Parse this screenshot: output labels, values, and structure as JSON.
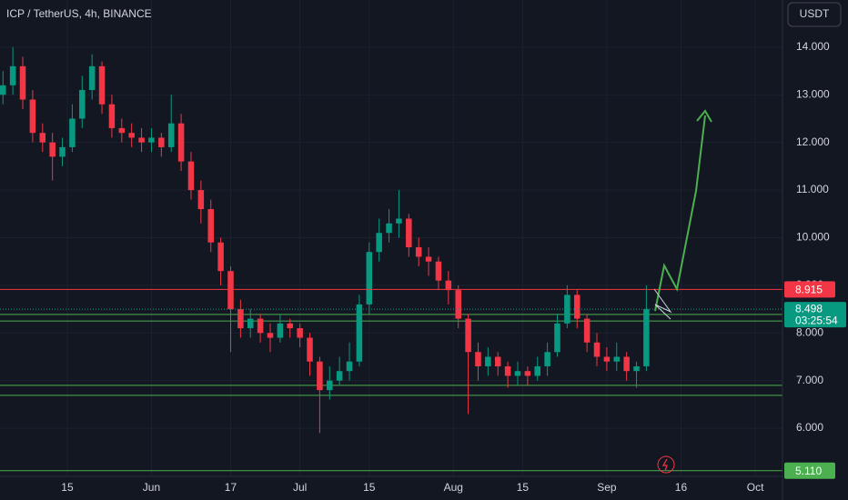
{
  "chart_data": {
    "type": "candlestick",
    "title": "ICP / TetherUS, 4h, BINANCE",
    "currency": "USDT",
    "x": [
      1,
      3,
      5,
      7,
      9,
      11,
      13,
      15,
      17,
      19,
      21,
      23,
      25,
      27,
      29,
      31,
      33,
      35,
      37,
      39,
      41,
      43,
      45,
      47,
      49,
      51,
      53,
      55,
      57,
      59,
      61,
      63,
      65,
      67,
      69,
      71,
      73,
      75,
      77,
      79,
      81,
      83,
      85,
      87,
      89,
      91,
      93,
      95,
      97,
      99,
      101,
      103,
      105,
      107,
      109,
      111,
      113,
      115,
      117,
      119,
      121,
      123,
      125,
      127,
      129,
      131
    ],
    "open": [
      13.0,
      13.2,
      13.6,
      12.9,
      12.2,
      12.0,
      11.7,
      11.9,
      12.5,
      13.1,
      13.6,
      12.8,
      12.3,
      12.2,
      12.1,
      12.0,
      12.1,
      11.9,
      12.4,
      11.6,
      11.0,
      10.6,
      9.9,
      9.3,
      8.5,
      8.1,
      8.3,
      8.0,
      7.9,
      8.2,
      8.1,
      7.9,
      7.4,
      6.8,
      7.0,
      7.2,
      7.4,
      8.6,
      9.7,
      10.1,
      10.3,
      10.4,
      9.8,
      9.6,
      9.5,
      9.1,
      8.9,
      8.3,
      7.6,
      7.3,
      7.5,
      7.3,
      7.1,
      7.2,
      7.1,
      7.3,
      7.6,
      8.2,
      8.8,
      8.3,
      7.8,
      7.5,
      7.4,
      7.5,
      7.2,
      7.3
    ],
    "high": [
      13.5,
      14.0,
      13.8,
      13.1,
      12.4,
      12.2,
      12.1,
      12.8,
      13.4,
      13.85,
      13.7,
      13.0,
      12.5,
      12.4,
      12.3,
      12.3,
      12.2,
      13.0,
      12.6,
      11.8,
      11.2,
      10.8,
      10.0,
      9.4,
      8.7,
      8.5,
      8.4,
      8.2,
      8.4,
      8.3,
      8.2,
      8.0,
      7.5,
      7.3,
      7.5,
      7.8,
      8.8,
      9.9,
      10.4,
      10.6,
      11.0,
      10.5,
      10.0,
      9.8,
      9.6,
      9.3,
      9.0,
      8.4,
      7.8,
      7.7,
      7.6,
      7.4,
      7.4,
      7.3,
      7.5,
      7.8,
      8.4,
      9.0,
      8.9,
      8.4,
      8.0,
      7.7,
      7.8,
      7.6,
      7.4,
      9.0
    ],
    "low": [
      12.8,
      13.0,
      12.7,
      12.0,
      11.8,
      11.2,
      11.5,
      11.8,
      12.3,
      12.9,
      12.6,
      12.1,
      12.0,
      11.9,
      11.8,
      11.8,
      11.7,
      11.8,
      11.4,
      10.8,
      10.3,
      9.7,
      9.0,
      7.6,
      7.9,
      7.9,
      7.8,
      7.6,
      7.8,
      7.9,
      7.7,
      7.1,
      5.9,
      6.6,
      6.9,
      7.0,
      7.3,
      8.4,
      9.5,
      9.9,
      10.0,
      9.6,
      9.4,
      9.2,
      8.9,
      8.6,
      8.1,
      6.3,
      7.0,
      7.1,
      7.1,
      6.85,
      6.9,
      6.9,
      7.0,
      7.1,
      7.5,
      8.1,
      8.1,
      7.6,
      7.3,
      7.2,
      7.2,
      7.0,
      6.85,
      7.2
    ],
    "close": [
      13.2,
      13.6,
      12.9,
      12.2,
      12.0,
      11.7,
      11.9,
      12.5,
      13.1,
      13.6,
      12.8,
      12.3,
      12.2,
      12.1,
      12.0,
      12.1,
      11.9,
      12.4,
      11.6,
      11.0,
      10.6,
      9.9,
      9.3,
      8.5,
      8.1,
      8.3,
      8.0,
      7.9,
      8.2,
      8.1,
      7.9,
      7.4,
      6.8,
      7.0,
      7.2,
      7.4,
      8.6,
      9.7,
      10.1,
      10.3,
      10.4,
      9.8,
      9.6,
      9.5,
      9.1,
      8.9,
      8.3,
      7.6,
      7.3,
      7.5,
      7.3,
      7.1,
      7.2,
      7.1,
      7.3,
      7.6,
      8.2,
      8.8,
      8.3,
      7.8,
      7.5,
      7.4,
      7.5,
      7.2,
      7.3,
      8.5
    ],
    "up_color": "#089981",
    "down_color": "#f23645",
    "xlim": [
      0.4,
      158.5
    ],
    "xticks": [
      {
        "value": 14,
        "label": "15"
      },
      {
        "value": 31,
        "label": "Jun"
      },
      {
        "value": 47,
        "label": "17"
      },
      {
        "value": 61,
        "label": "Jul"
      },
      {
        "value": 75,
        "label": "15"
      },
      {
        "value": 92,
        "label": "Aug"
      },
      {
        "value": 106,
        "label": "15"
      },
      {
        "value": 123,
        "label": "Sep"
      },
      {
        "value": 138,
        "label": "16"
      },
      {
        "value": 153,
        "label": "Oct"
      }
    ],
    "ylim": [
      4.99,
      14.99
    ],
    "yticks": [
      {
        "value": 6,
        "label": "6.000"
      },
      {
        "value": 7,
        "label": "7.000"
      },
      {
        "value": 8,
        "label": "8.000"
      },
      {
        "value": 9,
        "label": "9.000"
      },
      {
        "value": 10,
        "label": "10.000"
      },
      {
        "value": 11,
        "label": "11.000"
      },
      {
        "value": 12,
        "label": "12.000"
      },
      {
        "value": 13,
        "label": "13.000"
      },
      {
        "value": 14,
        "label": "14.000"
      }
    ],
    "grid": true,
    "price_lines": {
      "values": [
        8.915,
        5.11
      ],
      "value_labels": [
        "8.915",
        "5.110"
      ],
      "colors": [
        "#f23645",
        "#4caf50"
      ]
    },
    "support_lines": {
      "values": [
        8.39,
        8.25,
        6.9,
        6.69
      ],
      "color": "#4caf50"
    },
    "last": {
      "value": 8.498,
      "countdown": "03:25:54",
      "color": "#089981"
    }
  }
}
